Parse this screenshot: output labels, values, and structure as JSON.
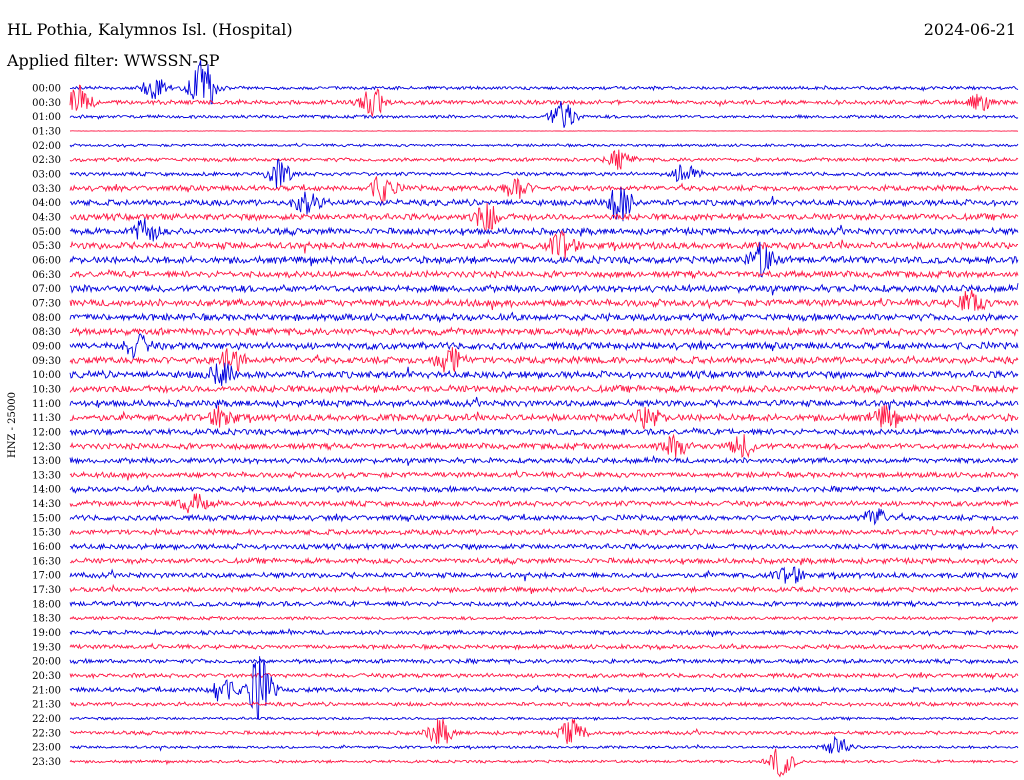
{
  "header": {
    "station": "HL Pothia, Kalymnos Isl. (Hospital)",
    "date": "2024-06-21",
    "filter": "Applied filter: WWSSN-SP"
  },
  "chart_data": {
    "type": "line",
    "title": "HL Pothia, Kalymnos Isl. (Hospital)",
    "ylabel": "HNZ - 25000",
    "row_labels": [
      "00:00",
      "00:30",
      "01:00",
      "01:30",
      "02:00",
      "02:30",
      "03:00",
      "03:30",
      "04:00",
      "04:30",
      "05:00",
      "05:30",
      "06:00",
      "06:30",
      "07:00",
      "07:30",
      "08:00",
      "08:30",
      "09:00",
      "09:30",
      "10:00",
      "10:30",
      "11:00",
      "11:30",
      "12:00",
      "12:30",
      "13:00",
      "13:30",
      "14:00",
      "14:30",
      "15:00",
      "15:30",
      "16:00",
      "16:30",
      "17:00",
      "17:30",
      "18:00",
      "18:30",
      "19:00",
      "19:30",
      "20:00",
      "20:30",
      "21:00",
      "21:30",
      "22:00",
      "22:30",
      "23:00",
      "23:30"
    ],
    "series_colors": [
      "#0000dd",
      "#ff1744"
    ],
    "noise_level": [
      0.6,
      0.8,
      0.6,
      0.1,
      0.5,
      0.7,
      0.7,
      1.0,
      1.1,
      1.2,
      1.2,
      1.3,
      1.3,
      1.2,
      1.3,
      1.3,
      1.3,
      1.3,
      1.3,
      1.3,
      1.3,
      1.3,
      1.2,
      1.3,
      1.1,
      1.1,
      1.0,
      1.0,
      1.0,
      1.0,
      1.0,
      1.0,
      1.0,
      1.0,
      1.0,
      0.9,
      0.9,
      0.6,
      0.8,
      0.8,
      0.8,
      0.8,
      0.9,
      0.7,
      0.5,
      0.7,
      0.5,
      0.5
    ],
    "events": [
      {
        "row": "00:00",
        "t": 0.14,
        "amp": 3.2
      },
      {
        "row": "00:00",
        "t": 0.09,
        "amp": 1.3
      },
      {
        "row": "00:30",
        "t": 0.01,
        "amp": 1.6
      },
      {
        "row": "00:30",
        "t": 0.32,
        "amp": 1.6
      },
      {
        "row": "00:30",
        "t": 0.96,
        "amp": 0.8
      },
      {
        "row": "01:00",
        "t": 0.52,
        "amp": 1.7
      },
      {
        "row": "02:30",
        "t": 0.58,
        "amp": 0.9
      },
      {
        "row": "03:00",
        "t": 0.22,
        "amp": 1.4
      },
      {
        "row": "03:00",
        "t": 0.65,
        "amp": 1.2
      },
      {
        "row": "03:30",
        "t": 0.33,
        "amp": 1.4
      },
      {
        "row": "03:30",
        "t": 0.47,
        "amp": 1.2
      },
      {
        "row": "04:00",
        "t": 0.58,
        "amp": 2.0
      },
      {
        "row": "04:00",
        "t": 0.25,
        "amp": 1.2
      },
      {
        "row": "04:30",
        "t": 0.44,
        "amp": 1.4
      },
      {
        "row": "05:00",
        "t": 0.08,
        "amp": 1.3
      },
      {
        "row": "05:30",
        "t": 0.52,
        "amp": 1.4
      },
      {
        "row": "06:00",
        "t": 0.73,
        "amp": 1.7
      },
      {
        "row": "07:30",
        "t": 0.95,
        "amp": 1.2
      },
      {
        "row": "09:00",
        "t": 0.07,
        "amp": 1.2
      },
      {
        "row": "09:30",
        "t": 0.4,
        "amp": 1.6
      },
      {
        "row": "09:30",
        "t": 0.17,
        "amp": 1.2
      },
      {
        "row": "10:00",
        "t": 0.16,
        "amp": 1.2
      },
      {
        "row": "11:30",
        "t": 0.16,
        "amp": 1.1
      },
      {
        "row": "11:30",
        "t": 0.61,
        "amp": 1.1
      },
      {
        "row": "11:30",
        "t": 0.86,
        "amp": 1.1
      },
      {
        "row": "12:30",
        "t": 0.64,
        "amp": 1.1
      },
      {
        "row": "12:30",
        "t": 0.71,
        "amp": 1.1
      },
      {
        "row": "14:30",
        "t": 0.13,
        "amp": 1.1
      },
      {
        "row": "15:00",
        "t": 0.85,
        "amp": 1.0
      },
      {
        "row": "17:00",
        "t": 0.76,
        "amp": 1.0
      },
      {
        "row": "21:00",
        "t": 0.2,
        "amp": 3.4
      },
      {
        "row": "21:00",
        "t": 0.16,
        "amp": 1.4
      },
      {
        "row": "22:30",
        "t": 0.39,
        "amp": 1.4
      },
      {
        "row": "22:30",
        "t": 0.53,
        "amp": 1.4
      },
      {
        "row": "23:00",
        "t": 0.81,
        "amp": 1.0
      },
      {
        "row": "23:30",
        "t": 0.75,
        "amp": 1.6
      }
    ]
  }
}
